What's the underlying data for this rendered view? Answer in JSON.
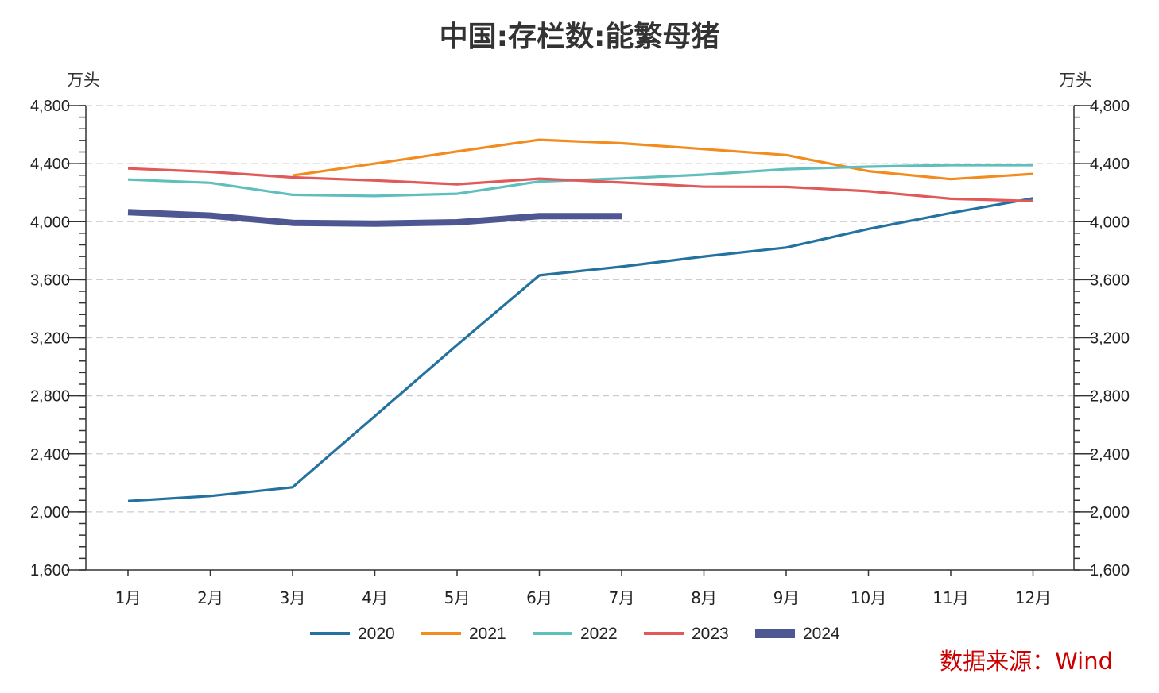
{
  "chart_data": {
    "type": "line",
    "title": "中国:存栏数:能繁母猪",
    "left_unit": "万头",
    "right_unit": "万头",
    "categories": [
      "1月",
      "2月",
      "3月",
      "4月",
      "5月",
      "6月",
      "7月",
      "8月",
      "9月",
      "10月",
      "11月",
      "12月"
    ],
    "ylim": [
      1600,
      4800
    ],
    "yticks": [
      1600,
      2000,
      2400,
      2800,
      3200,
      3600,
      4000,
      4400,
      4800
    ],
    "ytick_labels": [
      "1,600",
      "2,000",
      "2,400",
      "2,800",
      "3,200",
      "3,600",
      "4,000",
      "4,400",
      "4,800"
    ],
    "grid": true,
    "legend_position": "bottom-center",
    "source": "数据来源：Wind",
    "series": [
      {
        "name": "2020",
        "color": "#2472a0",
        "values": [
          2075,
          2110,
          2170,
          2660,
          3150,
          3630,
          3690,
          3760,
          3822,
          3950,
          4060,
          4161
        ]
      },
      {
        "name": "2021",
        "color": "#f28c1f",
        "values": [
          null,
          null,
          4318,
          4400,
          4484,
          4564,
          4540,
          4500,
          4459,
          4348,
          4293,
          4329
        ]
      },
      {
        "name": "2022",
        "color": "#5fbfbd",
        "values": [
          4290,
          4268,
          4185,
          4177,
          4192,
          4277,
          4298,
          4324,
          4362,
          4379,
          4390,
          4390
        ]
      },
      {
        "name": "2023",
        "color": "#e05a5a",
        "values": [
          4367,
          4343,
          4305,
          4284,
          4258,
          4296,
          4270,
          4241,
          4240,
          4210,
          4158,
          4142
        ]
      },
      {
        "name": "2024",
        "color": "#4e5791",
        "values": [
          4066,
          4042,
          3992,
          3986,
          3996,
          4038,
          4038,
          null,
          null,
          null,
          null,
          null
        ]
      }
    ]
  }
}
